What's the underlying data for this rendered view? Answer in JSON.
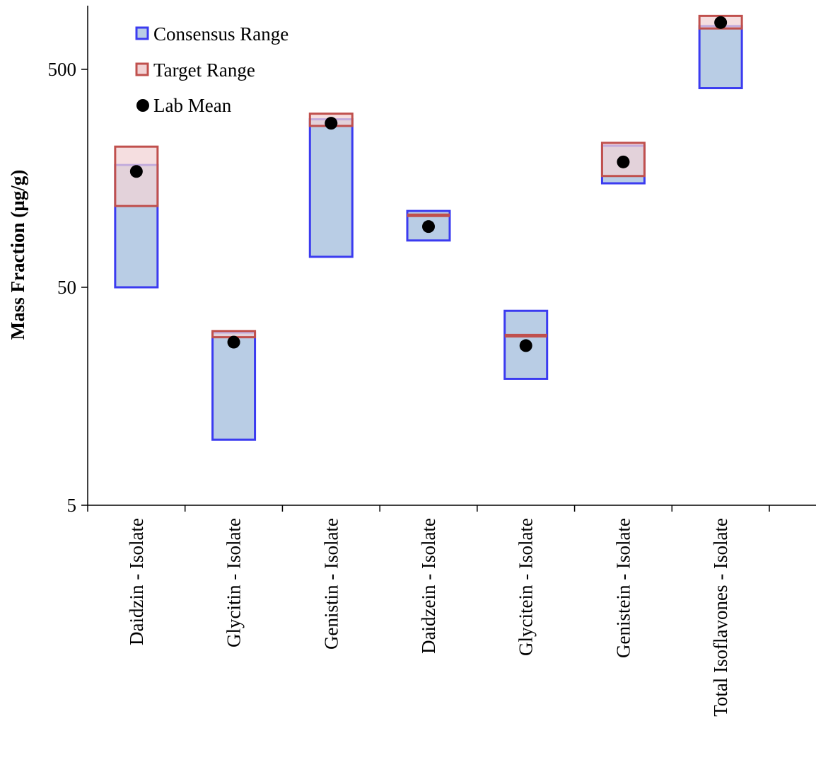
{
  "chart_data": {
    "type": "range",
    "title": "",
    "ylabel": "Mass Fraction (µg/g)",
    "xlabel": "",
    "yscale": "log",
    "ylim": [
      5,
      1000
    ],
    "yticks": [
      5,
      50,
      500
    ],
    "ytick_labels": [
      "5",
      "50",
      "500"
    ],
    "grid": false,
    "legend_position": "top-left",
    "categories": [
      "Daidzin - Isolate",
      "Glycitin - Isolate",
      "Genistin - Isolate",
      "Daidzein - Isolate",
      "Glycitein - Isolate",
      "Genistein - Isolate",
      "Total Isoflavones - Isolate"
    ],
    "series": [
      {
        "name": "Consensus Range",
        "kind": "range",
        "low": [
          50,
          10,
          69,
          82,
          19,
          150,
          410
        ],
        "high": [
          182,
          31,
          295,
          112,
          39,
          223,
          790
        ]
      },
      {
        "name": "Target Range",
        "kind": "range",
        "low": [
          118,
          29.5,
          275,
          107,
          30,
          162,
          770
        ],
        "high": [
          221,
          31.5,
          313,
          107,
          30,
          230,
          880
        ]
      },
      {
        "name": "Lab Mean",
        "kind": "point",
        "values": [
          170,
          28,
          283,
          95,
          27,
          188,
          820
        ]
      }
    ],
    "colors": {
      "consensus_fill": "#b9cde5",
      "consensus_stroke": "#3b3bf0",
      "target_fill": "#f2d3d5",
      "target_stroke": "#c0504d",
      "lab_mean": "#000000",
      "axis": "#000000"
    }
  }
}
